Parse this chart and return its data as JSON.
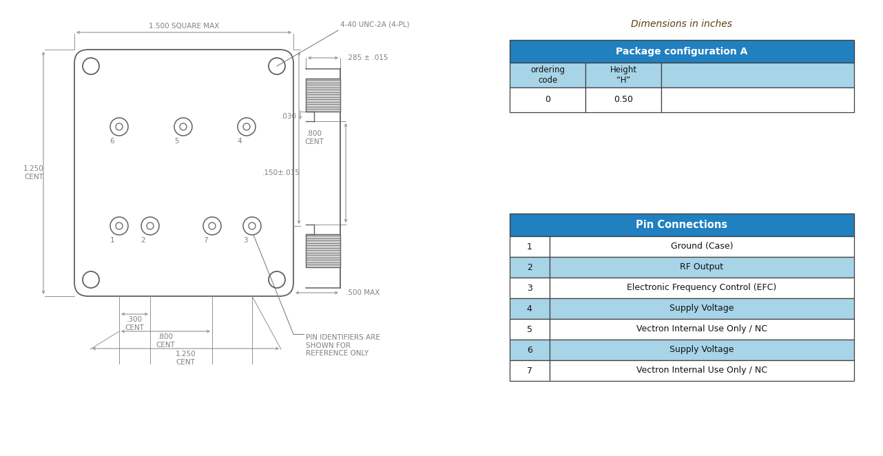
{
  "bg_color": "#ffffff",
  "dim_text_color": "#808080",
  "dark_blue": "#2080c0",
  "light_blue": "#a8d4e8",
  "table_border": "#404040",
  "dim_line_color": "#909090",
  "drawing_color": "#606060",
  "dim_in_inches": "Dimensions in inches",
  "pkg_title": "Package configuration A",
  "pkg_headers": [
    "ordering\ncode",
    "Height\n“H”",
    ""
  ],
  "pkg_data": [
    [
      "0",
      "0.50",
      ""
    ]
  ],
  "pin_title": "Pin Connections",
  "pin_rows": [
    [
      "1",
      "Ground (Case)"
    ],
    [
      "2",
      "RF Output"
    ],
    [
      "3",
      "Electronic Frequency Control (EFC)"
    ],
    [
      "4",
      "Supply Voltage"
    ],
    [
      "5",
      "Vectron Internal Use Only / NC"
    ],
    [
      "6",
      "Supply Voltage"
    ],
    [
      "7",
      "Vectron Internal Use Only / NC"
    ]
  ],
  "top_label": "4-40 UNC-2A (4-PL)",
  "dim1": "1.500 SQUARE MAX",
  "dim_left": "1.250\nCENT",
  "dim_right_top": ".800\nCENT",
  "dim_right_side": ".285 ± .015",
  "dim_mid1": ".150±.015",
  "dim_030": ".030",
  "dim_bottom_width": ".500 MAX",
  "dim_b1": ".300\nCENT",
  "dim_b2": ".800\nCENT",
  "dim_b3": "1.250\nCENT",
  "pin_note": "PIN IDENTIFIERS ARE\nSHOWN FOR\nREFERENCE ONLY"
}
